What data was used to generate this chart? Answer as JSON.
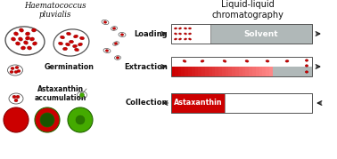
{
  "title_left_italic": "Haematococcus\npluvialis",
  "title_right": "Liquid-liquid\nchromatography",
  "labels_left": [
    "Germination",
    "Astaxanthin\naccumulation"
  ],
  "labels_right": [
    "Loading",
    "Extraction",
    "Collection"
  ],
  "box_labels": [
    "Solvent",
    "Astaxanthin"
  ],
  "bg_color": "#ffffff",
  "dark_red": "#cc0000",
  "light_red": "#ff8888",
  "pink_red": "#ffcccc",
  "gray_color": "#aaaaaa",
  "light_gray": "#cccccc",
  "mid_gray": "#b0b8b8",
  "green_color": "#44aa00",
  "dark_green": "#226600",
  "text_color": "#111111",
  "arrow_color": "#222222",
  "cell_edge": "#444444"
}
